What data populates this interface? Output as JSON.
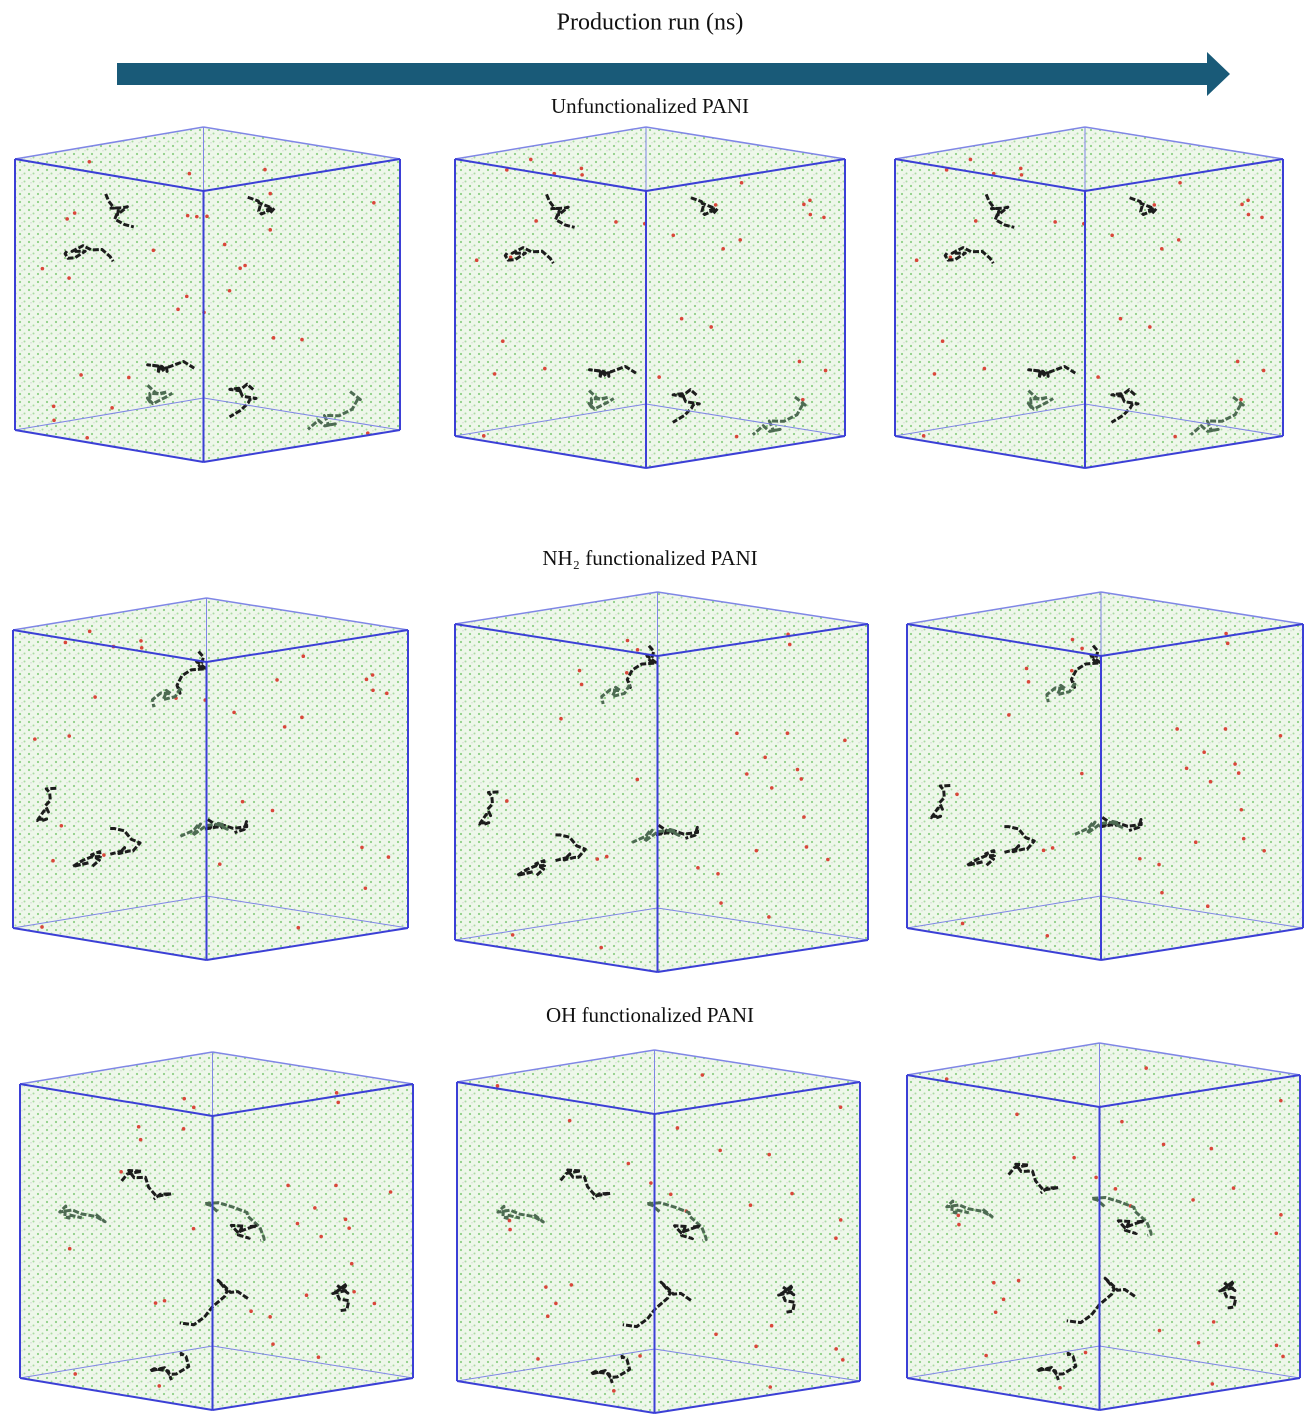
{
  "header": {
    "title": "Production run (ns)"
  },
  "rows": [
    {
      "label": "Unfunctionalized PANI"
    },
    {
      "label": "NH₂ functionalized PANI"
    },
    {
      "label": "OH functionalized PANI"
    }
  ]
}
